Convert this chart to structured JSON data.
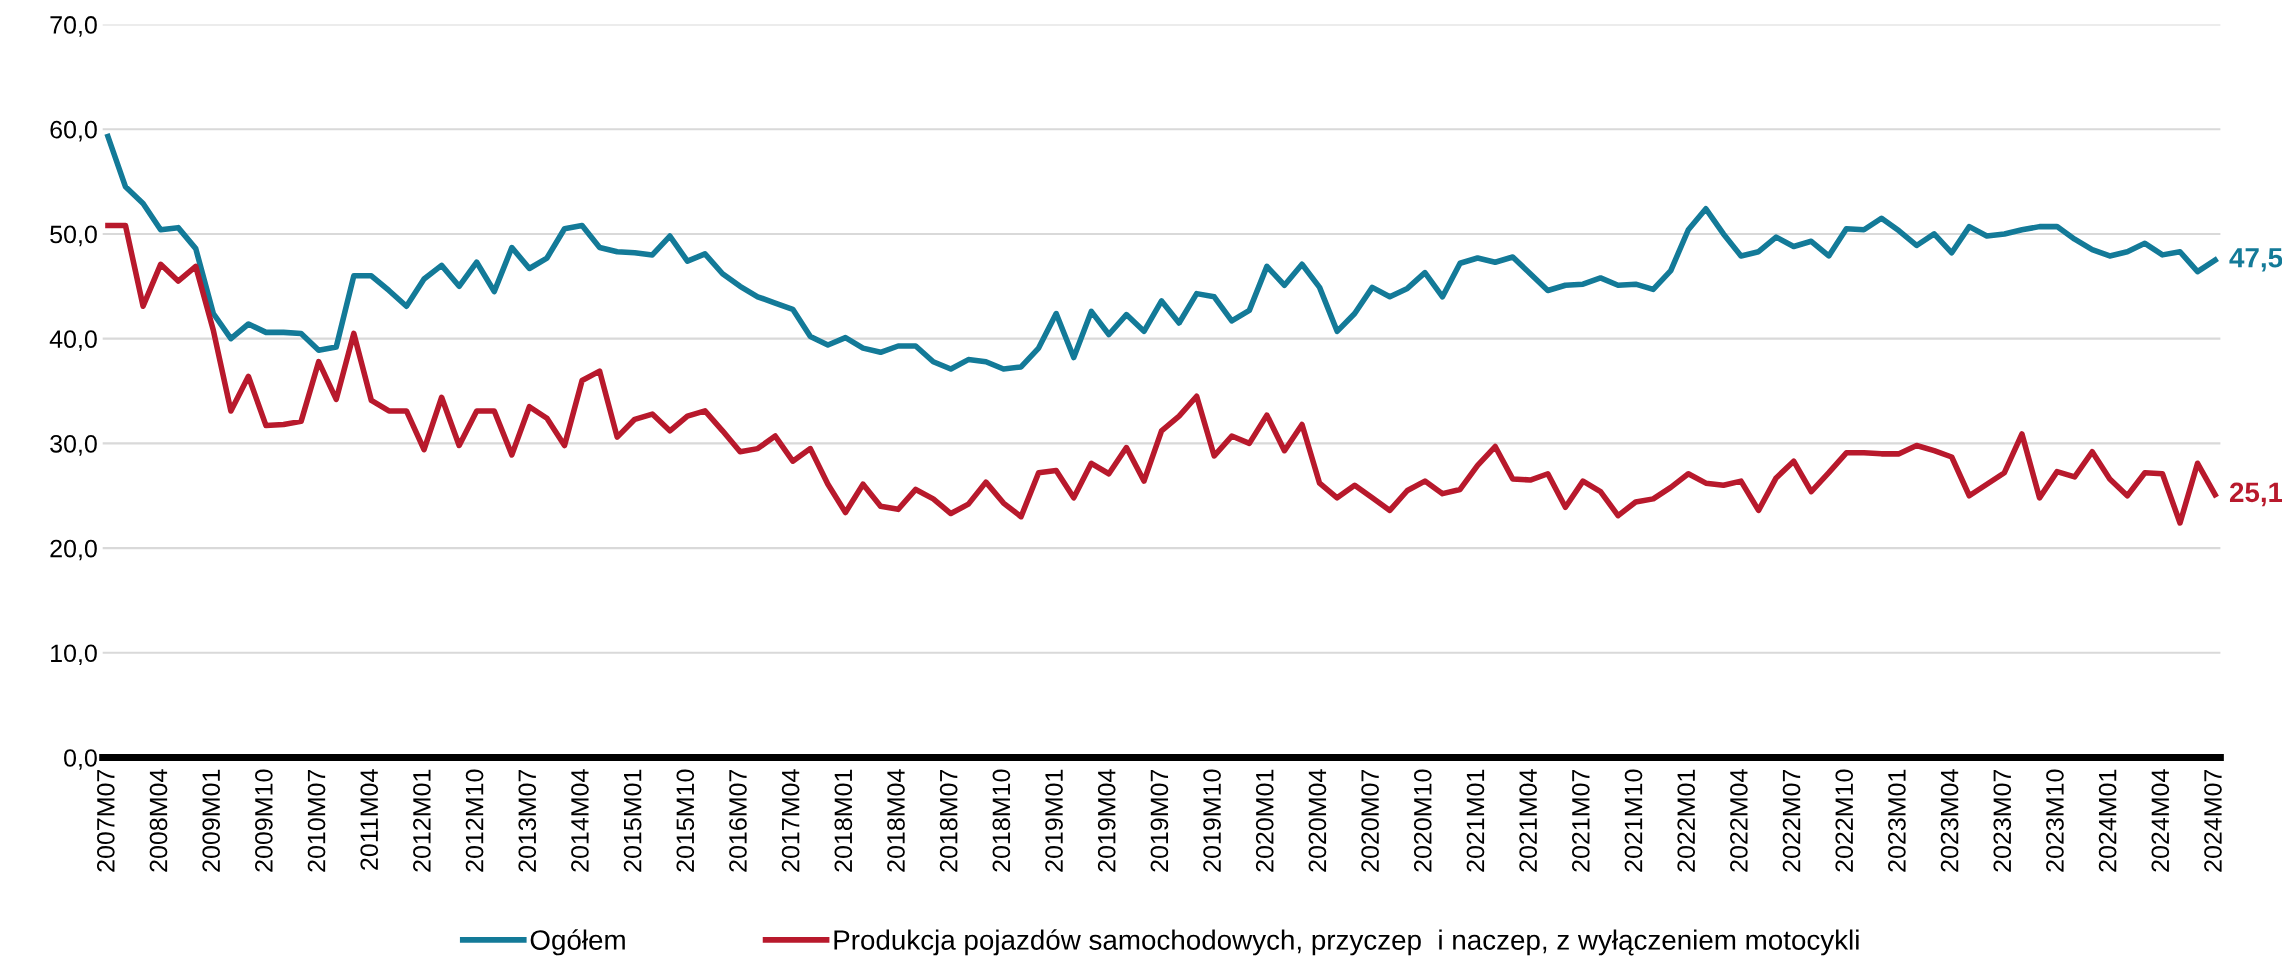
{
  "chart_data": {
    "type": "line",
    "categories": [
      "2007M07",
      null,
      null,
      "2008M04",
      null,
      null,
      "2009M01",
      null,
      null,
      "2009M10",
      null,
      null,
      "2010M07",
      null,
      null,
      "2011M04",
      null,
      null,
      "2012M01",
      null,
      null,
      "2012M10",
      null,
      null,
      "2013M07",
      null,
      null,
      "2014M04",
      null,
      null,
      "2015M01",
      null,
      null,
      "2015M10",
      null,
      null,
      "2016M07",
      null,
      null,
      "2017M04",
      null,
      null,
      "2018M01",
      null,
      null,
      "2018M04",
      null,
      null,
      "2018M07",
      null,
      null,
      "2018M10",
      null,
      null,
      "2019M01",
      null,
      null,
      "2019M04",
      null,
      null,
      "2019M07",
      null,
      null,
      "2019M10",
      null,
      null,
      "2020M01",
      null,
      null,
      "2020M04",
      null,
      null,
      "2020M07",
      null,
      null,
      "2020M10",
      null,
      null,
      "2021M01",
      null,
      null,
      "2021M04",
      null,
      null,
      "2021M07",
      null,
      null,
      "2021M10",
      null,
      null,
      "2022M01",
      null,
      null,
      "2022M04",
      null,
      null,
      "2022M07",
      null,
      null,
      "2022M10",
      null,
      null,
      "2023M01",
      null,
      null,
      "2023M04",
      null,
      null,
      "2023M07",
      null,
      null,
      "2023M10",
      null,
      null,
      "2024M01",
      null,
      null,
      "2024M04",
      null,
      null,
      "2024M07"
    ],
    "series": [
      {
        "name": "Ogółem",
        "color": "#137a98",
        "values": [
          59.3,
          54.5,
          52.9,
          50.4,
          50.6,
          48.6,
          42.4,
          40.0,
          41.4,
          40.6,
          40.6,
          40.5,
          38.9,
          39.2,
          46.0,
          46.0,
          44.6,
          43.1,
          45.7,
          47.0,
          45.0,
          47.3,
          44.5,
          48.7,
          46.7,
          47.7,
          50.5,
          50.8,
          48.7,
          48.3,
          48.2,
          48.0,
          49.8,
          47.4,
          48.1,
          46.2,
          45.0,
          44.0,
          43.4,
          42.8,
          40.2,
          39.4,
          40.1,
          39.1,
          38.7,
          39.3,
          39.3,
          37.8,
          37.1,
          38.0,
          37.8,
          37.1,
          37.3,
          39.1,
          42.4,
          38.2,
          42.6,
          40.4,
          42.3,
          40.7,
          43.6,
          41.5,
          44.3,
          44.0,
          41.7,
          42.7,
          46.9,
          45.1,
          47.1,
          44.9,
          40.7,
          42.4,
          44.9,
          44.0,
          44.8,
          46.3,
          44.0,
          47.2,
          47.7,
          47.3,
          47.8,
          46.2,
          44.6,
          45.1,
          45.2,
          45.8,
          45.1,
          45.2,
          44.7,
          46.5,
          50.4,
          52.4,
          50.0,
          47.9,
          48.3,
          49.7,
          48.8,
          49.3,
          47.9,
          50.5,
          50.4,
          51.5,
          50.3,
          48.9,
          50.0,
          48.2,
          50.7,
          49.8,
          50.0,
          50.4,
          50.7,
          50.7,
          49.5,
          48.5,
          47.9,
          48.3,
          49.1,
          48.0,
          48.3,
          46.4,
          47.5
        ],
        "value_labels": [
          null,
          null,
          null,
          null,
          null,
          null,
          null,
          null,
          null,
          null,
          null,
          null,
          null,
          null,
          null,
          null,
          null,
          null,
          null,
          null,
          null,
          null,
          null,
          null,
          null,
          null,
          null,
          null,
          null,
          null,
          null,
          null,
          null,
          null,
          null,
          null,
          null,
          null,
          null,
          null,
          null,
          null,
          null,
          null,
          null,
          null,
          null,
          null,
          null,
          null,
          null,
          null,
          null,
          null,
          null,
          null,
          null,
          null,
          null,
          null,
          null,
          null,
          null,
          null,
          null,
          null,
          null,
          null,
          null,
          null,
          null,
          null,
          null,
          null,
          null,
          null,
          null,
          null,
          null,
          null,
          null,
          null,
          null,
          null,
          null,
          null,
          null,
          null,
          null,
          null,
          null,
          null,
          null,
          null,
          null,
          null,
          null,
          null,
          null,
          null,
          null,
          null,
          null,
          null,
          null,
          null,
          null,
          null,
          null,
          null,
          null,
          null,
          null,
          null,
          null,
          null,
          null,
          null,
          null,
          null,
          "47,5"
        ]
      },
      {
        "name": "Produkcja pojazdów samochodowych, przyczep  i naczep, z wyłączeniem motocykli",
        "color": "#b8192c",
        "values": [
          50.8,
          50.8,
          43.1,
          47.1,
          45.5,
          46.9,
          40.8,
          33.1,
          36.4,
          31.7,
          31.8,
          32.1,
          37.8,
          34.2,
          40.5,
          34.1,
          33.1,
          33.1,
          29.4,
          34.4,
          29.8,
          33.1,
          33.1,
          28.9,
          33.5,
          32.4,
          29.8,
          36.0,
          36.9,
          30.6,
          32.3,
          32.8,
          31.2,
          32.6,
          33.1,
          31.2,
          29.2,
          29.5,
          30.7,
          28.3,
          29.5,
          26.1,
          23.4,
          26.1,
          24.0,
          23.7,
          25.6,
          24.7,
          23.3,
          24.2,
          26.3,
          24.3,
          23.0,
          27.2,
          27.4,
          24.8,
          28.1,
          27.1,
          29.6,
          26.4,
          31.2,
          32.6,
          34.5,
          28.8,
          30.7,
          30.0,
          32.7,
          29.3,
          31.8,
          26.2,
          24.8,
          26.0,
          24.8,
          23.6,
          25.5,
          26.4,
          25.2,
          25.6,
          27.9,
          29.7,
          26.6,
          26.5,
          27.1,
          23.9,
          26.4,
          25.4,
          23.1,
          24.4,
          24.7,
          25.8,
          27.1,
          26.2,
          26.0,
          26.4,
          23.6,
          26.7,
          28.3,
          25.4,
          27.2,
          29.1,
          29.1,
          29.0,
          29.0,
          29.8,
          29.3,
          28.7,
          25.0,
          26.1,
          27.2,
          30.9,
          24.8,
          27.3,
          26.8,
          29.2,
          26.6,
          25.0,
          27.2,
          27.1,
          22.4,
          28.1,
          25.1
        ],
        "value_labels": [
          null,
          null,
          null,
          null,
          null,
          null,
          null,
          null,
          null,
          null,
          null,
          null,
          null,
          null,
          null,
          null,
          null,
          null,
          null,
          null,
          null,
          null,
          null,
          null,
          null,
          null,
          null,
          null,
          null,
          null,
          null,
          null,
          null,
          null,
          null,
          null,
          null,
          null,
          null,
          null,
          null,
          null,
          null,
          null,
          null,
          null,
          null,
          null,
          null,
          null,
          null,
          null,
          null,
          null,
          null,
          null,
          null,
          null,
          null,
          null,
          null,
          null,
          null,
          null,
          null,
          null,
          null,
          null,
          null,
          null,
          null,
          null,
          null,
          null,
          null,
          null,
          null,
          null,
          null,
          null,
          null,
          null,
          null,
          null,
          null,
          null,
          null,
          null,
          null,
          null,
          null,
          null,
          null,
          null,
          null,
          null,
          null,
          null,
          null,
          null,
          null,
          null,
          null,
          null,
          null,
          null,
          null,
          null,
          null,
          null,
          null,
          null,
          null,
          null,
          null,
          null,
          null,
          null,
          null,
          null,
          "25,1"
        ]
      }
    ],
    "ylim": [
      0,
      70
    ],
    "yticks": [
      {
        "value": 0,
        "label": "0,0"
      },
      {
        "value": 10,
        "label": "10,0"
      },
      {
        "value": 20,
        "label": "20,0"
      },
      {
        "value": 30,
        "label": "30,0"
      },
      {
        "value": 40,
        "label": "40,0"
      },
      {
        "value": 50,
        "label": "50,0"
      },
      {
        "value": 60,
        "label": "60,0"
      },
      {
        "value": 70,
        "label": "70,0"
      }
    ],
    "grid": "y",
    "legend": "bottom",
    "marker": "none",
    "line_style": "solid"
  }
}
